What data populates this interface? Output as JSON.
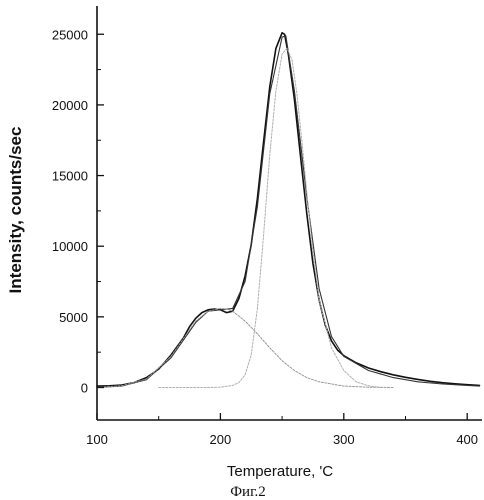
{
  "chart_data": {
    "type": "line",
    "xlabel": "Temperature, 'C",
    "ylabel": "Intensity, counts/sec",
    "caption": "Фиг.2",
    "xlim": [
      100,
      412
    ],
    "ylim": [
      -2300,
      27000
    ],
    "x_ticks": [
      100,
      200,
      300,
      400
    ],
    "y_ticks": [
      0,
      5000,
      10000,
      15000,
      20000,
      25000
    ],
    "grid": false,
    "series": [
      {
        "role": "measured",
        "color": "#111111",
        "x": [
          100,
          110,
          120,
          130,
          140,
          150,
          160,
          170,
          175,
          180,
          185,
          190,
          195,
          200,
          205,
          210,
          215,
          220,
          225,
          230,
          235,
          240,
          245,
          250,
          252,
          255,
          260,
          265,
          270,
          275,
          280,
          285,
          290,
          295,
          300,
          310,
          320,
          330,
          340,
          350,
          360,
          370,
          380,
          390,
          400,
          410
        ],
        "y": [
          100,
          120,
          180,
          350,
          700,
          1300,
          2300,
          3500,
          4300,
          4900,
          5300,
          5500,
          5550,
          5500,
          5300,
          5400,
          6300,
          7900,
          10100,
          13400,
          17400,
          21300,
          24000,
          25100,
          25000,
          23600,
          20400,
          16300,
          12300,
          8800,
          6200,
          4400,
          3300,
          2650,
          2250,
          1750,
          1380,
          1120,
          900,
          720,
          570,
          440,
          340,
          260,
          200,
          150
        ]
      },
      {
        "role": "fit-total",
        "color": "#333333",
        "x": [
          100,
          120,
          140,
          160,
          180,
          190,
          200,
          210,
          220,
          230,
          240,
          250,
          253,
          260,
          270,
          280,
          290,
          300,
          320,
          340,
          360,
          380,
          400,
          410
        ],
        "y": [
          0,
          100,
          550,
          2100,
          4600,
          5400,
          5500,
          5600,
          7500,
          12800,
          20800,
          24800,
          24900,
          21000,
          13500,
          7000,
          3600,
          2200,
          1200,
          700,
          400,
          250,
          150,
          100
        ]
      },
      {
        "role": "component-1",
        "color": "#999999",
        "x": [
          100,
          120,
          140,
          160,
          180,
          190,
          200,
          205,
          210,
          220,
          230,
          240,
          250,
          260,
          270,
          280,
          300,
          320,
          340
        ],
        "y": [
          0,
          120,
          600,
          2200,
          4700,
          5400,
          5600,
          5550,
          5400,
          4700,
          3800,
          2800,
          1900,
          1200,
          700,
          400,
          100,
          20,
          0
        ]
      },
      {
        "role": "component-2",
        "color": "#b0b0b0",
        "x": [
          150,
          170,
          190,
          200,
          210,
          215,
          220,
          225,
          230,
          235,
          240,
          245,
          250,
          254,
          258,
          262,
          266,
          270,
          275,
          280,
          290,
          300,
          310,
          320,
          330
        ],
        "y": [
          0,
          0,
          0,
          20,
          150,
          350,
          900,
          2300,
          5600,
          10800,
          16500,
          21000,
          23600,
          24000,
          23200,
          20800,
          17500,
          13800,
          9600,
          6200,
          2800,
          1200,
          400,
          120,
          0
        ]
      }
    ]
  }
}
